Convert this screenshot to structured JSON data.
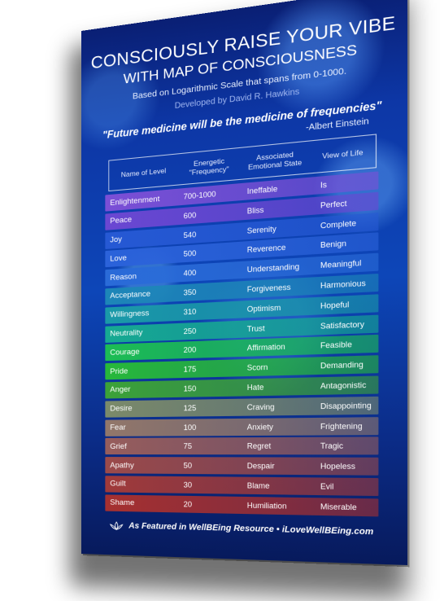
{
  "title_line1": "CONSCIOUSLY RAISE YOUR VIBE",
  "title_line2": "WITH MAP OF CONSCIOUSNESS",
  "subtitle": "Based on Logarithmic Scale that spans from 0-1000.",
  "developer": "Developed by David R. Hawkins",
  "quote": "\"Future medicine will be the medicine of frequencies\"",
  "quote_author": "-Albert Einstein",
  "headers": {
    "level": "Name of Level",
    "frequency": "Energetic \"Frequency\"",
    "emotion": "Associated Emotional State",
    "view": "View of Life"
  },
  "rows": [
    {
      "level": "Enlightenment",
      "frequency": "700-1000",
      "emotion": "Ineffable",
      "view": "Is",
      "color": "#7b4fd6"
    },
    {
      "level": "Peace",
      "frequency": "600",
      "emotion": "Bliss",
      "view": "Perfect",
      "color": "#6b47d2"
    },
    {
      "level": "Joy",
      "frequency": "540",
      "emotion": "Serenity",
      "view": "Complete",
      "color": "#2659d4"
    },
    {
      "level": "Love",
      "frequency": "500",
      "emotion": "Reverence",
      "view": "Benign",
      "color": "#2b62da"
    },
    {
      "level": "Reason",
      "frequency": "400",
      "emotion": "Understanding",
      "view": "Meaningful",
      "color": "#2a6bd8"
    },
    {
      "level": "Acceptance",
      "frequency": "350",
      "emotion": "Forgiveness",
      "view": "Harmonious",
      "color": "#1d86b8"
    },
    {
      "level": "Willingness",
      "frequency": "310",
      "emotion": "Optimism",
      "view": "Hopeful",
      "color": "#1a9aa8"
    },
    {
      "level": "Neutrality",
      "frequency": "250",
      "emotion": "Trust",
      "view": "Satisfactory",
      "color": "#16aa92"
    },
    {
      "level": "Courage",
      "frequency": "200",
      "emotion": "Affirmation",
      "view": "Feasible",
      "color": "#1cbd54"
    },
    {
      "level": "Pride",
      "frequency": "175",
      "emotion": "Scorn",
      "view": "Demanding",
      "color": "#27b83a"
    },
    {
      "level": "Anger",
      "frequency": "150",
      "emotion": "Hate",
      "view": "Antagonistic",
      "color": "#3ca238"
    },
    {
      "level": "Desire",
      "frequency": "125",
      "emotion": "Craving",
      "view": "Disappointing",
      "color": "#7b8a6a"
    },
    {
      "level": "Fear",
      "frequency": "100",
      "emotion": "Anxiety",
      "view": "Frightening",
      "color": "#92776a"
    },
    {
      "level": "Grief",
      "frequency": "75",
      "emotion": "Regret",
      "view": "Tragic",
      "color": "#975d5c"
    },
    {
      "level": "Apathy",
      "frequency": "50",
      "emotion": "Despair",
      "view": "Hopeless",
      "color": "#9b4a4a"
    },
    {
      "level": "Guilt",
      "frequency": "30",
      "emotion": "Blame",
      "view": "Evil",
      "color": "#a03a3a"
    },
    {
      "level": "Shame",
      "frequency": "20",
      "emotion": "Humiliation",
      "view": "Miserable",
      "color": "#a63030"
    }
  ],
  "footer": "As Featured in WellBEing Resource • iLoveWellBEing.com"
}
